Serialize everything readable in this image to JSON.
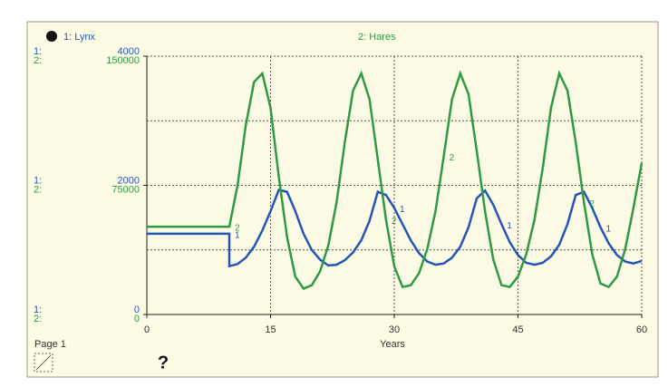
{
  "chart_data": {
    "type": "line",
    "x_label": "Years",
    "page_label": "Page 1",
    "help_label": "?",
    "x": [
      0,
      10,
      10,
      11,
      12,
      13,
      14,
      15,
      16,
      17,
      18,
      19,
      20,
      21,
      22,
      23,
      24,
      25,
      26,
      27,
      28,
      29,
      30,
      31,
      32,
      33,
      34,
      35,
      36,
      37,
      38,
      39,
      40,
      41,
      42,
      43,
      44,
      45,
      46,
      47,
      48,
      49,
      50,
      51,
      52,
      53,
      54,
      55,
      56,
      57,
      58,
      59,
      60
    ],
    "xlim": [
      0,
      60
    ],
    "xticks": [
      0,
      15,
      30,
      45,
      60
    ],
    "ylim": [
      0,
      4000
    ],
    "yticks": [
      0,
      2000,
      4000
    ],
    "y_minor_gridlines": [
      1000,
      3000
    ],
    "y2lim": [
      0,
      150000
    ],
    "y2ticks": [
      0,
      75000,
      150000
    ],
    "grid": true,
    "series": [
      {
        "name": "1: Lynx",
        "axis_prefix": "1:",
        "line_marker": "1",
        "color": "#2456b8",
        "values": [
          1250,
          1250,
          750,
          780,
          880,
          1050,
          1300,
          1600,
          1930,
          1900,
          1600,
          1250,
          1000,
          850,
          760,
          770,
          840,
          960,
          1150,
          1450,
          1900,
          1850,
          1650,
          1400,
          1150,
          950,
          820,
          770,
          790,
          880,
          1050,
          1350,
          1800,
          1920,
          1700,
          1400,
          1120,
          920,
          800,
          770,
          800,
          900,
          1080,
          1400,
          1850,
          1900,
          1650,
          1350,
          1100,
          920,
          820,
          790,
          830
        ]
      },
      {
        "name": "2: Hares",
        "axis": "y2",
        "axis_prefix": "2:",
        "line_marker": "2",
        "color": "#2e9a44",
        "values": [
          51000,
          51000,
          51000,
          75000,
          110000,
          135000,
          140000,
          120000,
          80000,
          45000,
          22000,
          15000,
          17000,
          25000,
          40000,
          65000,
          100000,
          130000,
          140000,
          125000,
          90000,
          55000,
          28000,
          16000,
          17000,
          24000,
          38000,
          60000,
          92000,
          125000,
          140000,
          128000,
          95000,
          60000,
          32000,
          17000,
          16000,
          22000,
          35000,
          55000,
          85000,
          120000,
          140000,
          130000,
          100000,
          65000,
          35000,
          18000,
          16000,
          22000,
          38000,
          62000,
          88000
        ]
      }
    ]
  }
}
